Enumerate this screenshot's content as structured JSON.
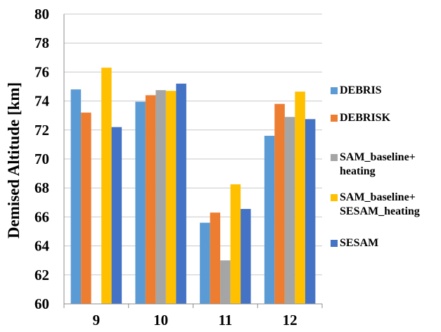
{
  "chart_data": {
    "type": "bar",
    "categories": [
      "9",
      "10",
      "11",
      "12"
    ],
    "series": [
      {
        "name": "DEBRIS",
        "color": "#5B9BD5",
        "values": [
          74.8,
          73.95,
          65.6,
          71.6
        ]
      },
      {
        "name": "DEBRISK",
        "color": "#ED7D31",
        "values": [
          73.2,
          74.4,
          66.3,
          73.8
        ]
      },
      {
        "name": "SAM_baseline+\nheating",
        "color": "#A5A5A5",
        "values": [
          59.95,
          74.75,
          63.0,
          72.9
        ]
      },
      {
        "name": "SAM_baseline+\nSESAM_heating",
        "color": "#FFC000",
        "values": [
          76.3,
          74.7,
          68.25,
          74.65
        ]
      },
      {
        "name": "SESAM",
        "color": "#4472C4",
        "values": [
          72.2,
          75.2,
          66.55,
          72.75
        ]
      }
    ],
    "title": "",
    "xlabel": "",
    "ylabel": "Demised Altitude [km]",
    "ylim": [
      60,
      80
    ],
    "yticks": [
      "60",
      "62",
      "64",
      "66",
      "68",
      "70",
      "72",
      "74",
      "76",
      "78",
      "80"
    ],
    "grid": true,
    "legend_position": "right"
  }
}
